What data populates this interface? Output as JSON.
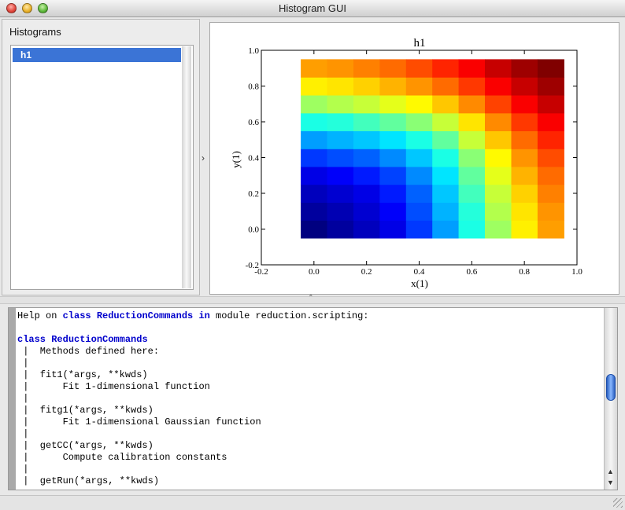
{
  "window": {
    "title": "Histogram GUI"
  },
  "histograms_panel": {
    "label": "Histograms",
    "items": [
      {
        "label": "h1",
        "selected": true
      }
    ]
  },
  "chart_data": {
    "type": "heatmap",
    "title": "h1",
    "xlabel": "x(1)",
    "ylabel": "y(1)",
    "xlim": [
      -0.2,
      1.0
    ],
    "ylim": [
      -0.2,
      1.0
    ],
    "x_ticks": [
      "-0.2",
      "0.0",
      "0.2",
      "0.4",
      "0.6",
      "0.8",
      "1.0"
    ],
    "y_ticks": [
      "-0.2",
      "0.0",
      "0.2",
      "0.4",
      "0.6",
      "0.8",
      "1.0"
    ],
    "x_bin_edges": [
      -0.05,
      0.05,
      0.15,
      0.25,
      0.35,
      0.45,
      0.55,
      0.65,
      0.75,
      0.85,
      0.95
    ],
    "y_bin_edges": [
      -0.05,
      0.05,
      0.15,
      0.25,
      0.35,
      0.45,
      0.55,
      0.65,
      0.75,
      0.85,
      0.95
    ],
    "colormap": "jet",
    "z_rows_bottom_to_top": [
      [
        0.0,
        0.03,
        0.06,
        0.1,
        0.18,
        0.28,
        0.4,
        0.53,
        0.64,
        0.72
      ],
      [
        0.03,
        0.05,
        0.08,
        0.12,
        0.2,
        0.3,
        0.41,
        0.55,
        0.65,
        0.73
      ],
      [
        0.06,
        0.08,
        0.1,
        0.15,
        0.22,
        0.32,
        0.44,
        0.57,
        0.67,
        0.75
      ],
      [
        0.1,
        0.12,
        0.15,
        0.19,
        0.26,
        0.35,
        0.47,
        0.6,
        0.7,
        0.77
      ],
      [
        0.18,
        0.2,
        0.22,
        0.26,
        0.32,
        0.4,
        0.51,
        0.63,
        0.73,
        0.8
      ],
      [
        0.28,
        0.3,
        0.32,
        0.35,
        0.4,
        0.47,
        0.57,
        0.68,
        0.77,
        0.84
      ],
      [
        0.4,
        0.41,
        0.44,
        0.47,
        0.51,
        0.57,
        0.65,
        0.74,
        0.82,
        0.88
      ],
      [
        0.53,
        0.55,
        0.57,
        0.6,
        0.63,
        0.68,
        0.74,
        0.81,
        0.88,
        0.93
      ],
      [
        0.64,
        0.65,
        0.67,
        0.7,
        0.73,
        0.77,
        0.82,
        0.88,
        0.93,
        0.97
      ],
      [
        0.72,
        0.73,
        0.75,
        0.77,
        0.8,
        0.84,
        0.88,
        0.93,
        0.97,
        1.0
      ]
    ]
  },
  "console": {
    "lines": [
      [
        {
          "t": "Help on "
        },
        {
          "t": "class",
          "kw": true
        },
        {
          "t": " "
        },
        {
          "t": "ReductionCommands",
          "kw": true
        },
        {
          "t": " "
        },
        {
          "t": "in",
          "kw": true
        },
        {
          "t": " module reduction.scripting:"
        }
      ],
      [
        {
          "t": ""
        }
      ],
      [
        {
          "t": "class",
          "kw": true
        },
        {
          "t": " "
        },
        {
          "t": "ReductionCommands",
          "kw": true
        }
      ],
      [
        {
          "t": " |  Methods defined here:"
        }
      ],
      [
        {
          "t": " |"
        }
      ],
      [
        {
          "t": " |  fit1(*args, **kwds)"
        }
      ],
      [
        {
          "t": " |      Fit 1-dimensional function"
        }
      ],
      [
        {
          "t": " |"
        }
      ],
      [
        {
          "t": " |  fitg1(*args, **kwds)"
        }
      ],
      [
        {
          "t": " |      Fit 1-dimensional Gaussian function"
        }
      ],
      [
        {
          "t": " |"
        }
      ],
      [
        {
          "t": " |  getCC(*args, **kwds)"
        }
      ],
      [
        {
          "t": " |      Compute calibration constants"
        }
      ],
      [
        {
          "t": " |"
        }
      ],
      [
        {
          "t": " |  getRun(*args, **kwds)"
        }
      ]
    ]
  }
}
